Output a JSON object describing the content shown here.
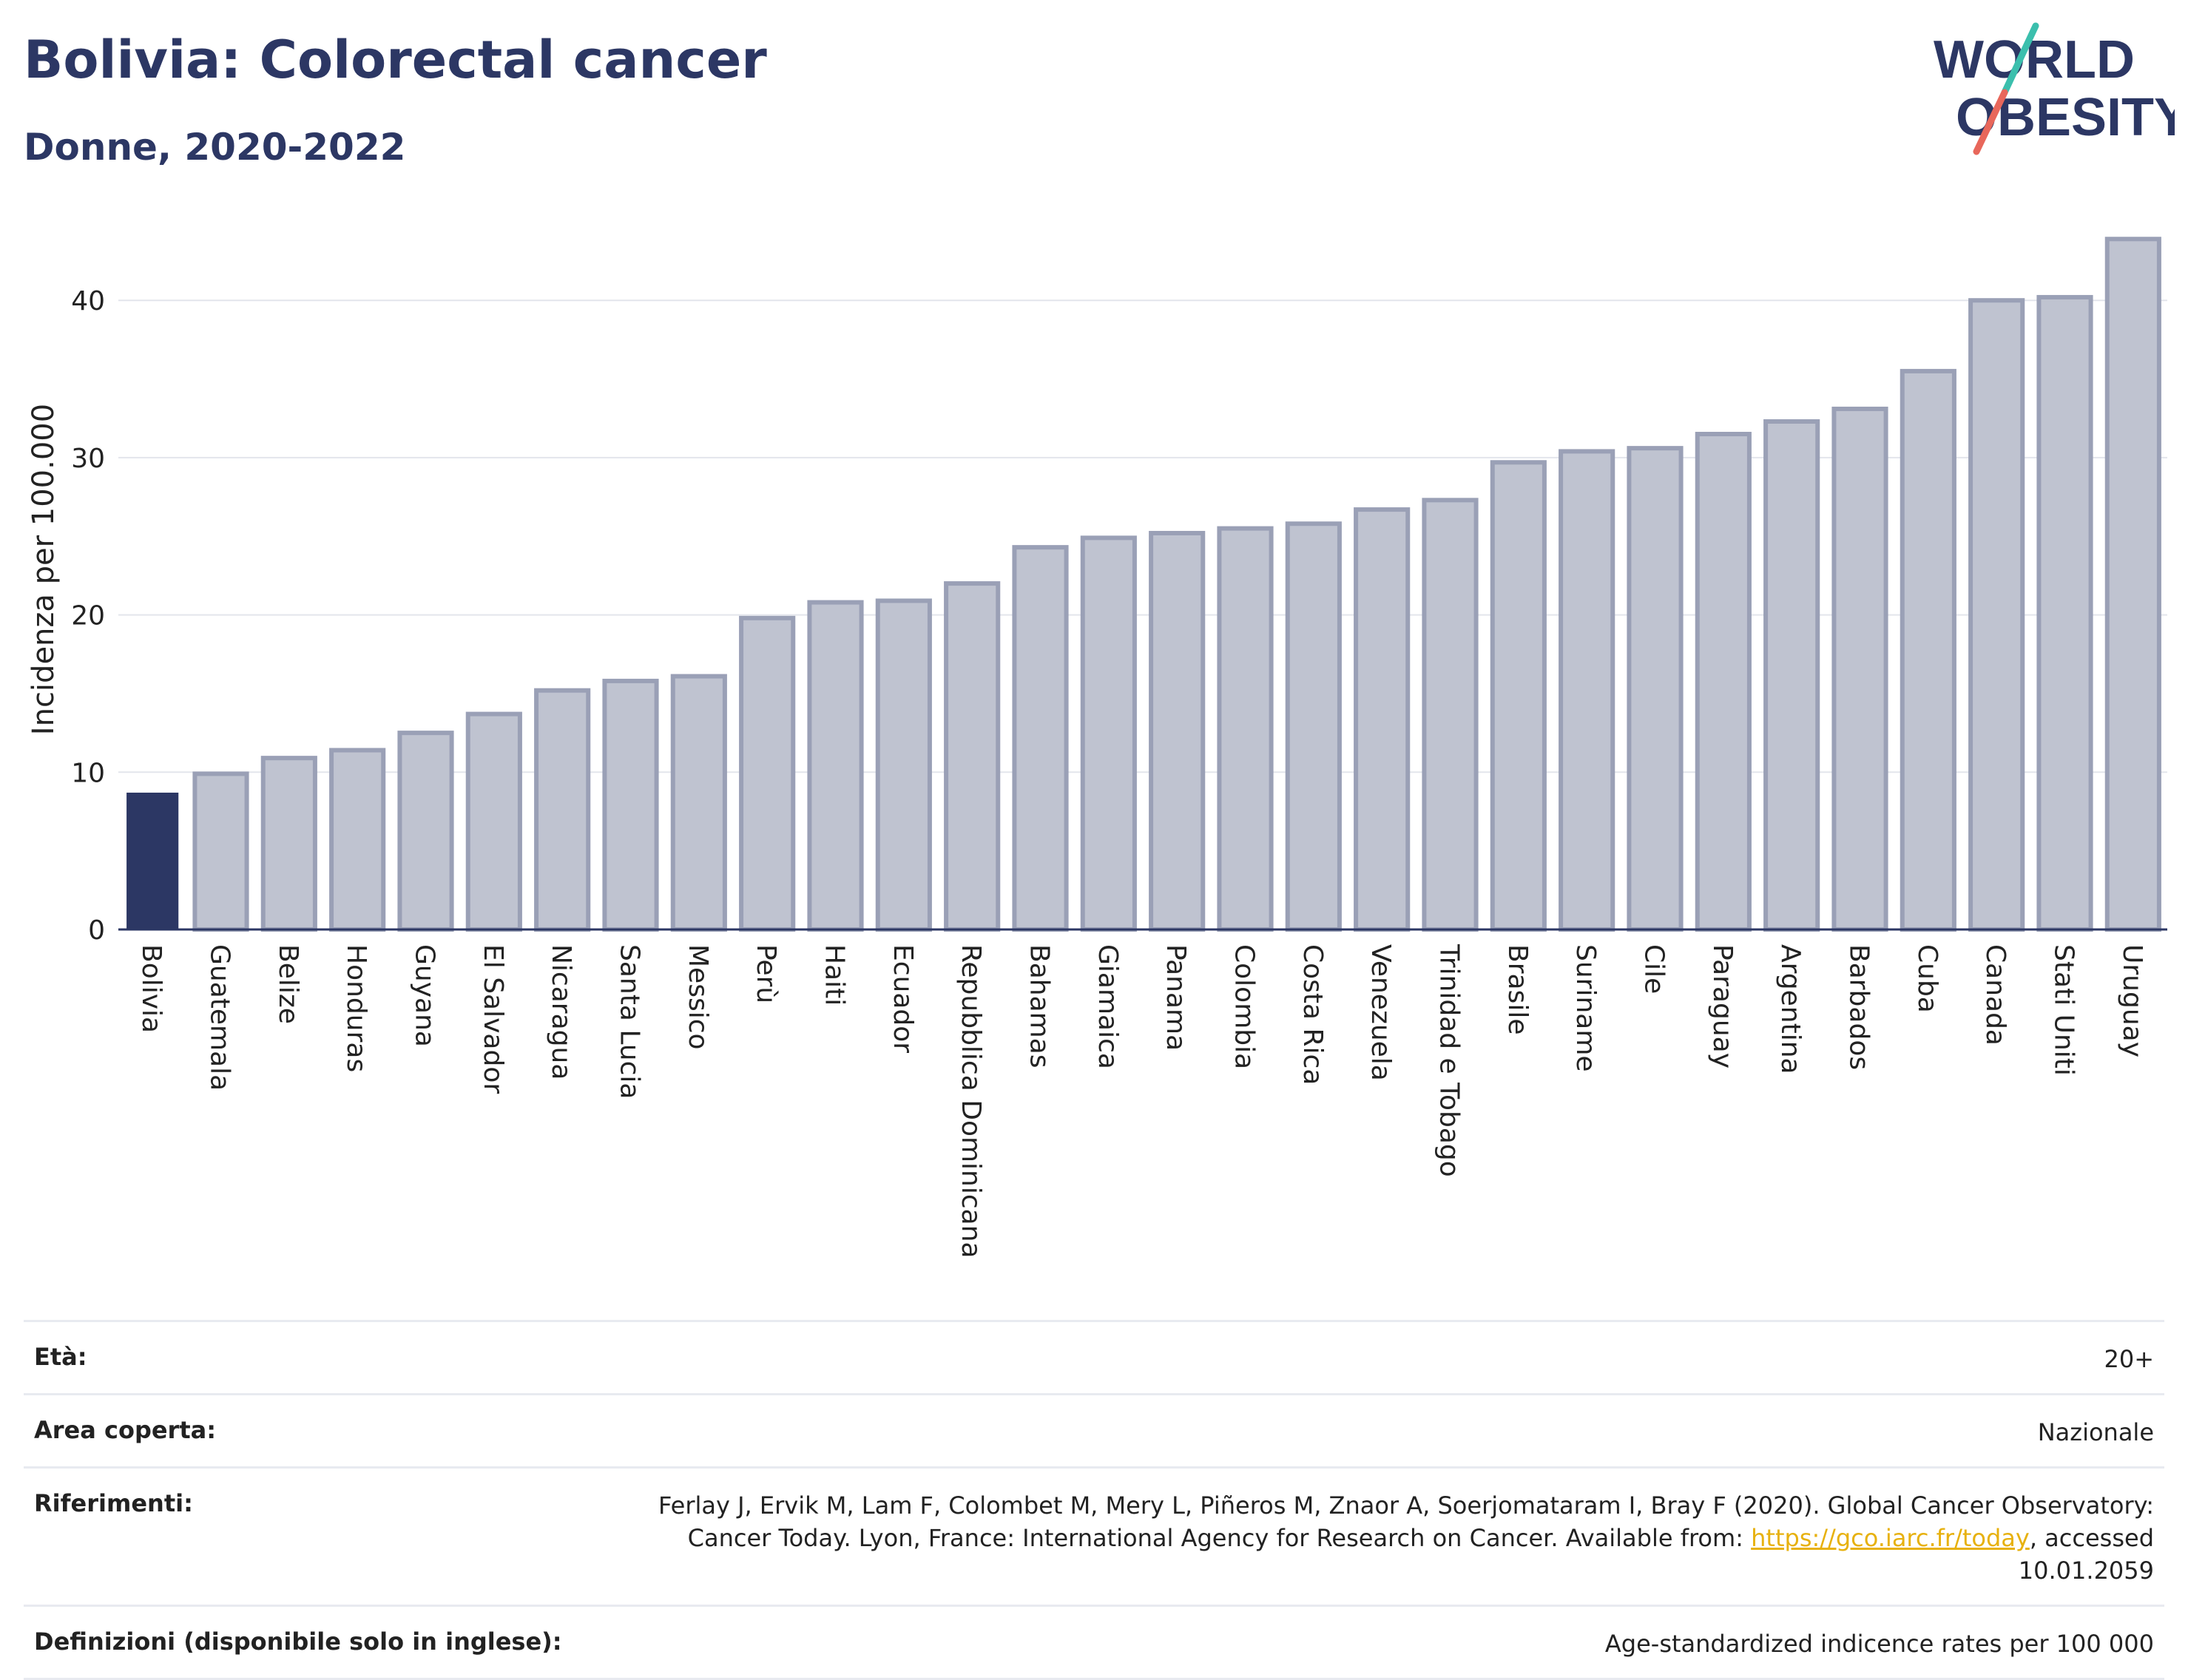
{
  "header": {
    "title": "Bolivia: Colorectal cancer",
    "subtitle": "Donne, 2020-2022"
  },
  "logo": {
    "line1": "WORLD",
    "line2": "OBESITY",
    "colors": {
      "text": "#2c3764",
      "slash_teal": "#3bbfad",
      "slash_red": "#e8675b"
    }
  },
  "colors": {
    "highlight": "#2c3764",
    "bar_fill": "#bfc3d0",
    "bar_stroke": "#9aa0b6",
    "grid": "#e3e5ec",
    "link": "#e7b10e"
  },
  "chart_data": {
    "type": "bar",
    "title": "Bolivia: Colorectal cancer",
    "subtitle": "Donne, 2020-2022",
    "ylabel": "Incidenza per 100.000",
    "xlabel": "",
    "ylim": [
      0,
      45
    ],
    "yticks": [
      0,
      10,
      20,
      30,
      40
    ],
    "grid": true,
    "highlight": "Bolivia",
    "categories": [
      "Bolivia",
      "Guatemala",
      "Belize",
      "Honduras",
      "Guyana",
      "El Salvador",
      "Nicaragua",
      "Santa Lucia",
      "Messico",
      "Perù",
      "Haiti",
      "Ecuador",
      "Repubblica Dominicana",
      "Bahamas",
      "Giamaica",
      "Panama",
      "Colombia",
      "Costa Rica",
      "Venezuela",
      "Trinidad e Tobago",
      "Brasile",
      "Suriname",
      "Cile",
      "Paraguay",
      "Argentina",
      "Barbados",
      "Cuba",
      "Canada",
      "Stati Uniti",
      "Uruguay"
    ],
    "values": [
      8.7,
      9.9,
      10.9,
      11.4,
      12.5,
      13.7,
      15.2,
      15.8,
      16.1,
      19.8,
      20.8,
      20.9,
      22.0,
      24.3,
      24.9,
      25.2,
      25.5,
      25.8,
      26.7,
      27.3,
      29.7,
      30.4,
      30.6,
      31.5,
      32.3,
      33.1,
      35.5,
      40.0,
      40.2,
      43.9
    ]
  },
  "info": [
    {
      "label": "Età:",
      "value": "20+"
    },
    {
      "label": "Area coperta:",
      "value": "Nazionale"
    },
    {
      "label": "Riferimenti:",
      "value_pre": "Ferlay J, Ervik M, Lam F, Colombet M, Mery L, Piñeros M, Znaor A, Soerjomataram I, Bray F (2020). Global Cancer Observatory: Cancer Today. Lyon, France: International Agency for Research on Cancer. Available from: ",
      "link": "https://gco.iarc.fr/today",
      "value_post": ", accessed 10.01.2059"
    },
    {
      "label": "Definizioni (disponibile solo in inglese):",
      "value": "Age-standardized indicence rates per 100 000"
    }
  ]
}
